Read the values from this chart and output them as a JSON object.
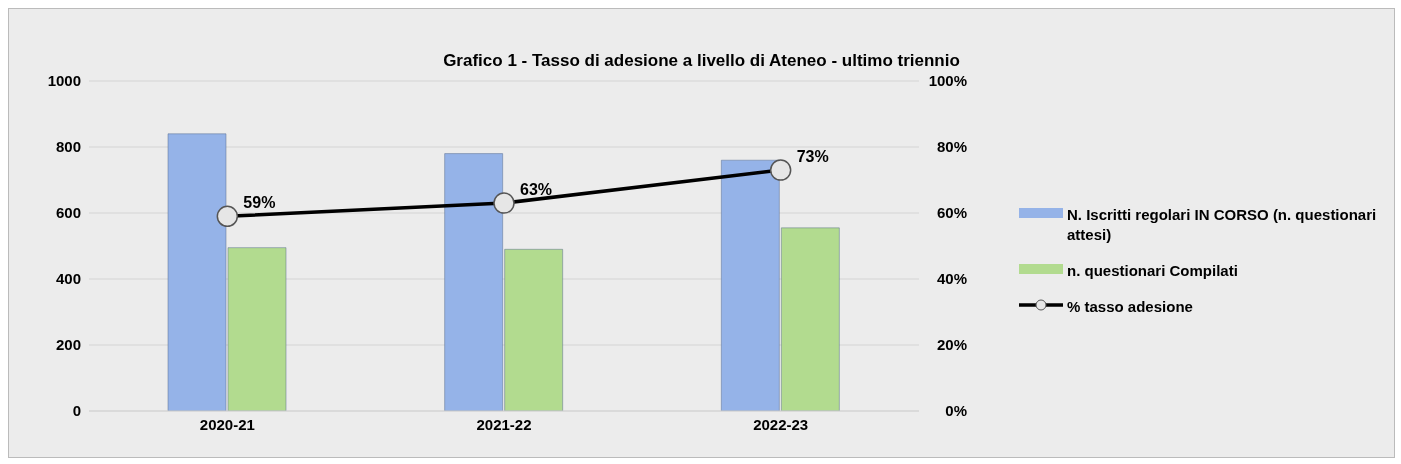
{
  "chart_data": {
    "type": "bar",
    "title": "Grafico 1 - Tasso di adesione a livello di Ateneo - ultimo triennio",
    "categories": [
      "2020-21",
      "2021-22",
      "2022-23"
    ],
    "series": [
      {
        "name": "N. Iscritti regolari IN CORSO (n. questionari attesi)",
        "color": "#95b3e8",
        "values": [
          840,
          780,
          760
        ]
      },
      {
        "name": "n. questionari Compilati",
        "color": "#b2db8f",
        "values": [
          495,
          490,
          555
        ]
      },
      {
        "name": "% tasso adesione",
        "type": "line",
        "axis": "y2",
        "color": "#000000",
        "values": [
          59,
          63,
          73
        ],
        "value_labels": [
          "59%",
          "63%",
          "73%"
        ],
        "marker": "circle"
      }
    ],
    "ylim": [
      0,
      1000
    ],
    "yticks": [
      0,
      200,
      400,
      600,
      800,
      1000
    ],
    "y2lim": [
      0,
      100
    ],
    "y2ticks": [
      {
        "value": 0,
        "label": "0%"
      },
      {
        "value": 20,
        "label": "20%"
      },
      {
        "value": 40,
        "label": "40%"
      },
      {
        "value": 60,
        "label": "60%"
      },
      {
        "value": 80,
        "label": "80%"
      },
      {
        "value": 100,
        "label": "100%"
      }
    ],
    "grid": "y",
    "legend": "right"
  }
}
